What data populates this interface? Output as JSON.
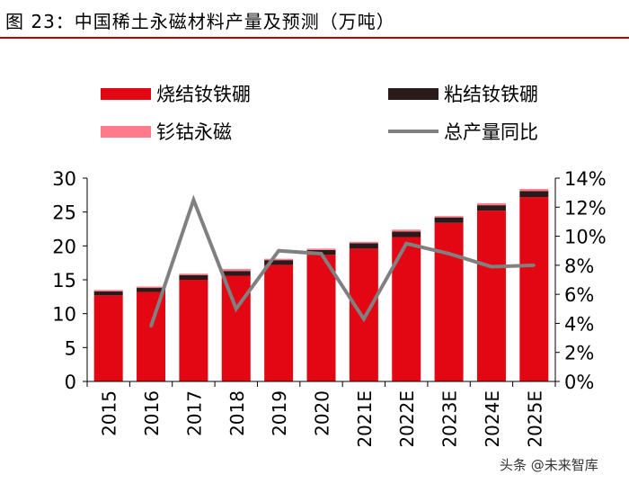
{
  "figure_title": "图 23：中国稀土永磁材料产量及预测（万吨）",
  "watermark": "头条 @未来智库",
  "chart_data": {
    "type": "bar",
    "stacked": true,
    "categories": [
      "2015",
      "2016",
      "2017",
      "2018",
      "2019",
      "2020",
      "2021E",
      "2022E",
      "2023E",
      "2024E",
      "2025E"
    ],
    "series": [
      {
        "name": "烧结钕铁硼",
        "kind": "bar",
        "axis": "left",
        "color": "#e30613",
        "values": [
          12.7,
          13.2,
          15.0,
          15.6,
          17.2,
          18.7,
          19.6,
          21.3,
          23.4,
          25.2,
          27.2
        ]
      },
      {
        "name": "粘结钕铁硼",
        "kind": "bar",
        "axis": "left",
        "color": "#2b1a1a",
        "values": [
          0.6,
          0.6,
          0.7,
          0.7,
          0.7,
          0.7,
          0.8,
          0.8,
          0.8,
          0.8,
          0.9
        ]
      },
      {
        "name": "钐钴永磁",
        "kind": "bar",
        "axis": "left",
        "color": "#ff7a8a",
        "values": [
          0.2,
          0.2,
          0.2,
          0.3,
          0.2,
          0.2,
          0.2,
          0.3,
          0.2,
          0.3,
          0.3
        ]
      },
      {
        "name": "总产量同比",
        "kind": "line",
        "axis": "right",
        "color": "#808080",
        "values": [
          null,
          3.8,
          12.5,
          5.0,
          9.0,
          8.8,
          4.3,
          9.5,
          8.8,
          7.9,
          8.0
        ]
      }
    ],
    "y_left": {
      "min": 0,
      "max": 30,
      "step": 5,
      "ticks": [
        "0",
        "5",
        "10",
        "15",
        "20",
        "25",
        "30"
      ]
    },
    "y_right": {
      "min": 0,
      "max": 14,
      "step": 2,
      "ticks": [
        "0%",
        "2%",
        "4%",
        "6%",
        "8%",
        "10%",
        "12%",
        "14%"
      ]
    },
    "legend_position": "top-left"
  }
}
